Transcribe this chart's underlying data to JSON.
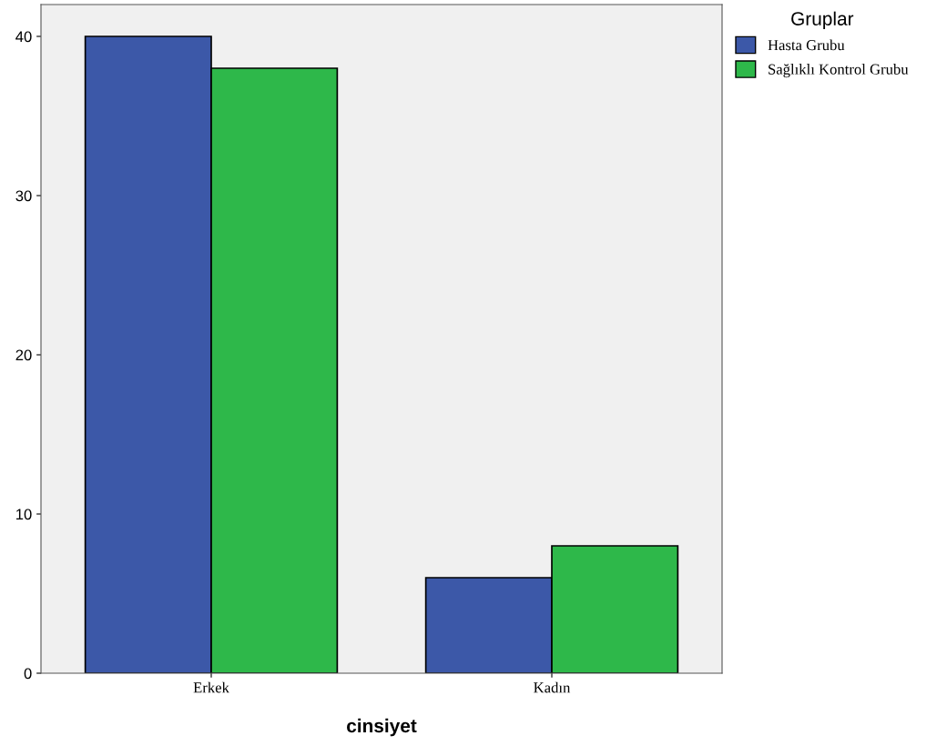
{
  "chart_data": {
    "type": "bar",
    "xlabel": "cinsiyet",
    "legend_title": "Gruplar",
    "categories": [
      "Erkek",
      "Kadın"
    ],
    "series": [
      {
        "name": "Hasta Grubu",
        "color": "#3c58a8",
        "values": [
          40,
          6
        ]
      },
      {
        "name": "Sağlıklı Kontrol Grubu",
        "color": "#2eb84a",
        "values": [
          38,
          8
        ]
      }
    ],
    "ylim": [
      0,
      42
    ],
    "yticks": [
      0,
      10,
      20,
      30,
      40
    ],
    "grid": false,
    "legend": "top right"
  }
}
